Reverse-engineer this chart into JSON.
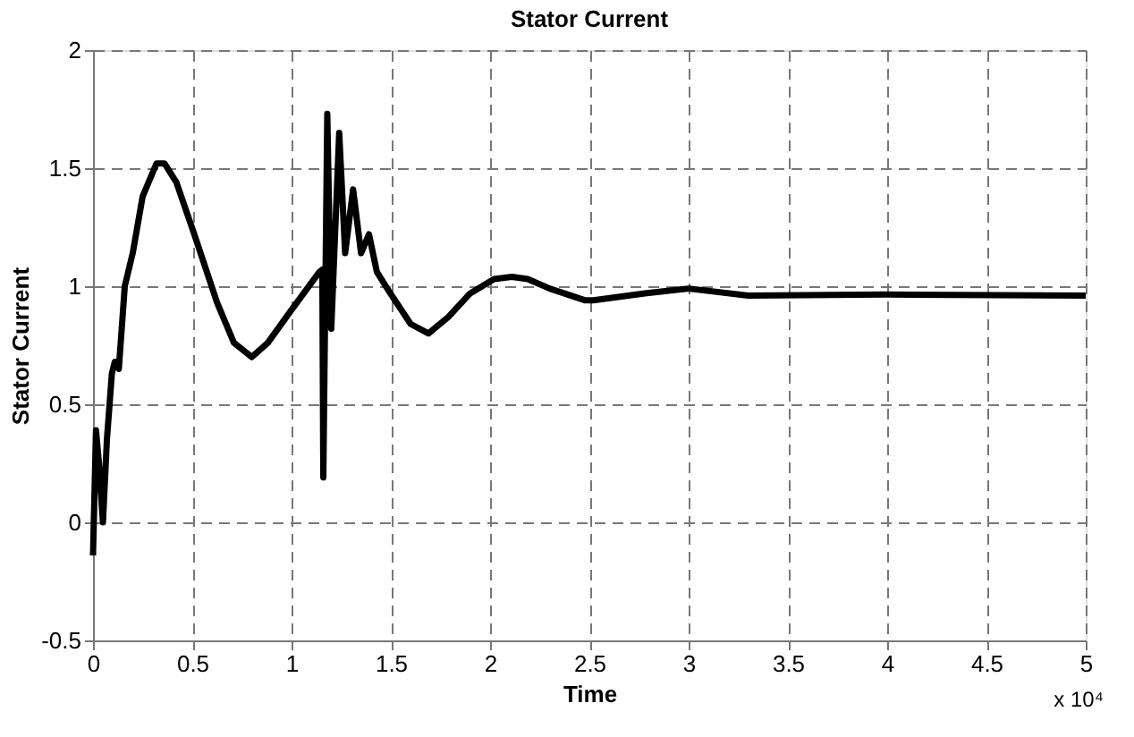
{
  "chart_data": {
    "type": "line",
    "title": "Stator Current",
    "xlabel": "Time",
    "ylabel": "Stator Current",
    "annotations": [
      "x 10⁴"
    ],
    "xlim": [
      0,
      5
    ],
    "xticks": [
      0,
      0.5,
      1,
      1.5,
      2,
      2.5,
      3,
      3.5,
      4,
      4.5,
      5
    ],
    "ylim": [
      -0.5,
      2
    ],
    "yticks": [
      -0.5,
      0,
      0.5,
      1,
      1.5,
      2
    ],
    "grid": true,
    "marker": "none",
    "line_style": "solid",
    "series": [
      {
        "color": "#000000",
        "x": [
          0,
          0.015,
          0.03,
          0.05,
          0.07,
          0.095,
          0.11,
          0.13,
          0.16,
          0.2,
          0.25,
          0.32,
          0.36,
          0.42,
          0.51,
          0.625,
          0.71,
          0.8,
          0.88,
          1.0,
          1.14,
          1.155,
          1.16,
          1.18,
          1.2,
          1.24,
          1.27,
          1.31,
          1.35,
          1.39,
          1.43,
          1.49,
          1.6,
          1.69,
          1.79,
          1.9,
          2.02,
          2.11,
          2.19,
          2.3,
          2.48,
          2.52,
          2.78,
          3.0,
          3.3,
          4.0,
          5.0
        ],
        "values": [
          -0.14,
          0.39,
          0.25,
          0.0,
          0.35,
          0.63,
          0.68,
          0.65,
          1.0,
          1.14,
          1.38,
          1.52,
          1.52,
          1.44,
          1.22,
          0.93,
          0.76,
          0.7,
          0.76,
          0.9,
          1.06,
          1.07,
          0.19,
          1.73,
          0.82,
          1.65,
          1.14,
          1.41,
          1.14,
          1.22,
          1.06,
          0.98,
          0.84,
          0.8,
          0.87,
          0.97,
          1.03,
          1.04,
          1.03,
          0.99,
          0.94,
          0.94,
          0.97,
          0.99,
          0.96,
          0.965,
          0.96
        ]
      }
    ]
  }
}
